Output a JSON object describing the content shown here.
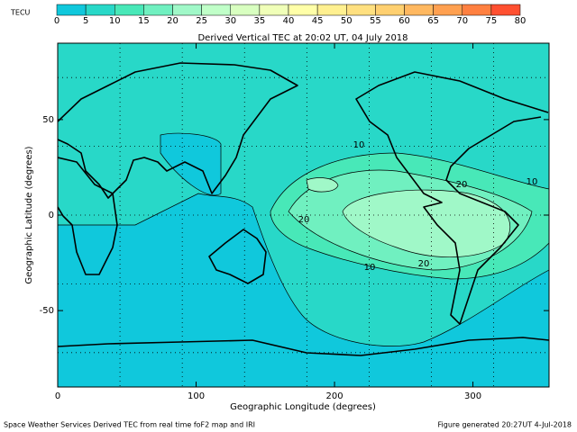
{
  "chart_data": {
    "type": "contour-map",
    "title": "Derived Vertical TEC at 20:02 UT, 04 July 2018",
    "xlabel": "Geographic Longitude (degrees)",
    "ylabel": "Geographic Latitude (degrees)",
    "xlim": [
      0,
      355
    ],
    "ylim": [
      -90,
      90
    ],
    "xticks": [
      0,
      100,
      200,
      300
    ],
    "yticks": [
      -50,
      0,
      50
    ],
    "xgrid": [
      45,
      90,
      135,
      180,
      225,
      270,
      315
    ],
    "ygrid": [
      -72,
      -36,
      0,
      36,
      72
    ],
    "colorbar": {
      "label": "TECU",
      "ticks": [
        0,
        5,
        10,
        15,
        20,
        25,
        30,
        35,
        40,
        45,
        50,
        55,
        60,
        65,
        70,
        75,
        80
      ],
      "colors": [
        "#10c8dc",
        "#28d8c8",
        "#48e8b8",
        "#70f0c0",
        "#a0f8c8",
        "#c0ffc8",
        "#d8ffc0",
        "#f0ffb8",
        "#ffffa8",
        "#fff090",
        "#ffe080",
        "#ffd070",
        "#ffb860",
        "#ffa050",
        "#ff8040",
        "#ff5030"
      ]
    },
    "contour_labels": [
      "10",
      "20"
    ],
    "footer_left": "Space Weather Services Derived TEC from real time foF2 map and IRI",
    "footer_right": "Figure generated 20:27UT 4-Jul-2018"
  }
}
